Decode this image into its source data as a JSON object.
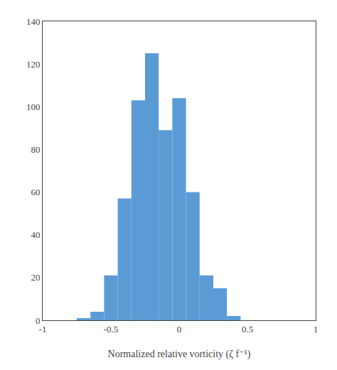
{
  "chart_data": {
    "type": "histogram",
    "xlabel": "Normalized relative vorticity (ζ f⁻¹)",
    "bins": [
      -0.75,
      -0.65,
      -0.55,
      -0.45,
      -0.35,
      -0.25,
      -0.15,
      -0.05,
      0.05,
      0.15,
      0.25,
      0.35,
      0.45,
      0.55,
      0.65,
      0.75
    ],
    "counts": [
      1,
      4,
      21,
      57,
      103,
      125,
      89,
      104,
      60,
      21,
      15,
      2,
      0,
      0,
      0
    ],
    "color": "#5b9bd5",
    "xlim": [
      -1.0,
      1.0
    ],
    "xticks": [
      -1,
      -0.5,
      0,
      0.5,
      1
    ],
    "ylim": [
      0,
      140
    ],
    "yticks": [
      0,
      20,
      40,
      60,
      80,
      100,
      120,
      140
    ],
    "grid": false
  }
}
